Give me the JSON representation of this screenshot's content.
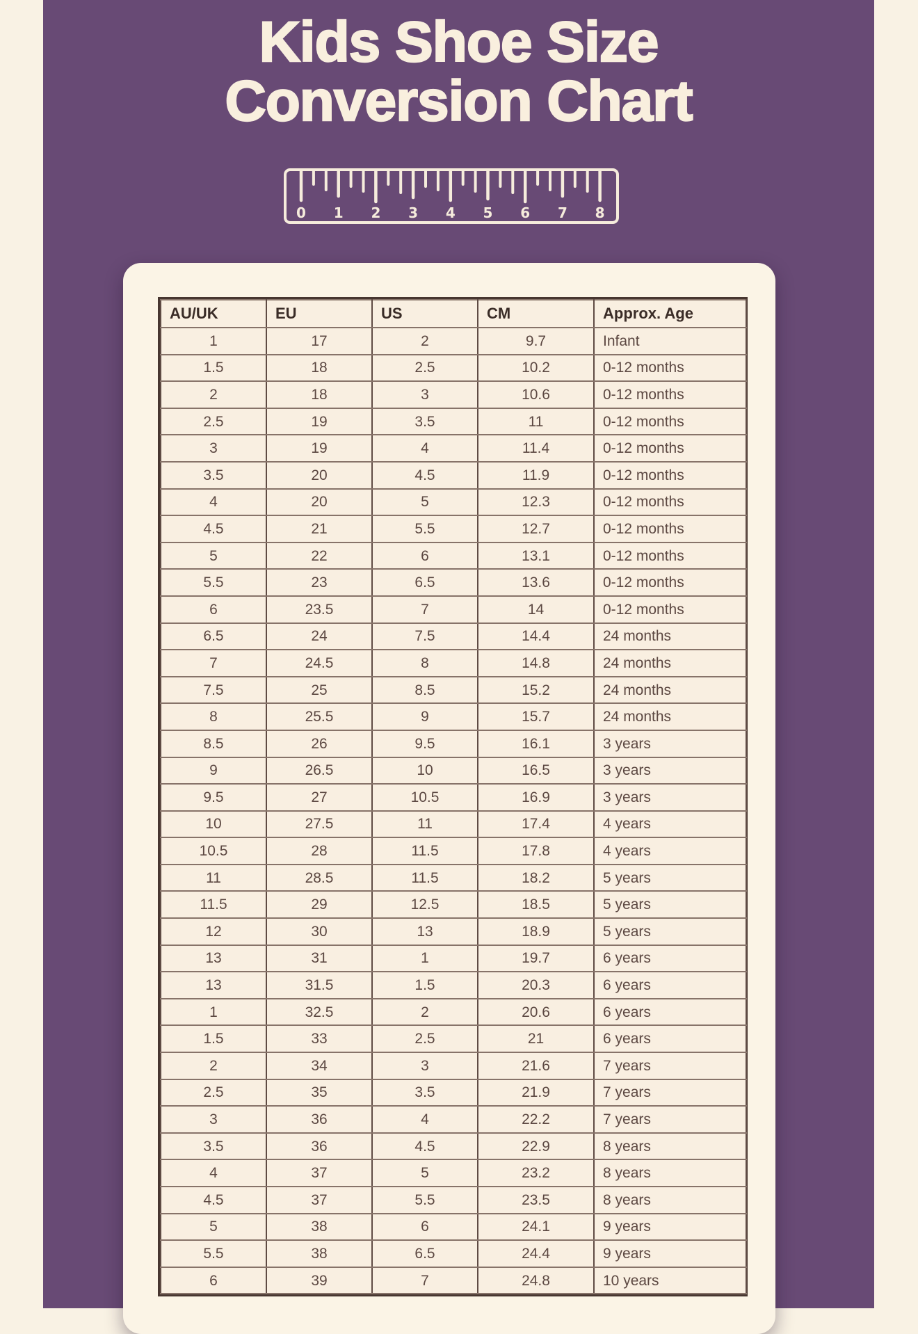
{
  "page": {
    "title_line1": "Kids Shoe Size",
    "title_line2": "Conversion Chart"
  },
  "ruler": {
    "numbers": [
      "0",
      "1",
      "2",
      "3",
      "4",
      "5",
      "6",
      "7",
      "8"
    ]
  },
  "colors": {
    "page_background": "#f9f2e4",
    "panel_purple": "#684a75",
    "title_cream": "#f9efde",
    "card_cream": "#fbf4e6",
    "cell_cream": "#f9efe1",
    "table_outer_border": "#473630",
    "table_vertical_border": "#5f4b44",
    "table_horizontal_border": "#877369",
    "header_text": "#3a2c27",
    "cell_text": "#5c4842",
    "ruler_stroke": "#f6ecdc"
  },
  "table": {
    "headers": [
      "AU/UK",
      "EU",
      "US",
      "CM",
      "Approx. Age"
    ],
    "rows": [
      [
        "1",
        "17",
        "2",
        "9.7",
        "Infant"
      ],
      [
        "1.5",
        "18",
        "2.5",
        "10.2",
        "0-12 months"
      ],
      [
        "2",
        "18",
        "3",
        "10.6",
        "0-12 months"
      ],
      [
        "2.5",
        "19",
        "3.5",
        "11",
        "0-12 months"
      ],
      [
        "3",
        "19",
        "4",
        "11.4",
        "0-12 months"
      ],
      [
        "3.5",
        "20",
        "4.5",
        "11.9",
        "0-12 months"
      ],
      [
        "4",
        "20",
        "5",
        "12.3",
        "0-12 months"
      ],
      [
        "4.5",
        "21",
        "5.5",
        "12.7",
        "0-12 months"
      ],
      [
        "5",
        "22",
        "6",
        "13.1",
        "0-12 months"
      ],
      [
        "5.5",
        "23",
        "6.5",
        "13.6",
        "0-12 months"
      ],
      [
        "6",
        "23.5",
        "7",
        "14",
        "0-12 months"
      ],
      [
        "6.5",
        "24",
        "7.5",
        "14.4",
        "24 months"
      ],
      [
        "7",
        "24.5",
        "8",
        "14.8",
        "24 months"
      ],
      [
        "7.5",
        "25",
        "8.5",
        "15.2",
        "24 months"
      ],
      [
        "8",
        "25.5",
        "9",
        "15.7",
        "24 months"
      ],
      [
        "8.5",
        "26",
        "9.5",
        "16.1",
        "3 years"
      ],
      [
        "9",
        "26.5",
        "10",
        "16.5",
        "3 years"
      ],
      [
        "9.5",
        "27",
        "10.5",
        "16.9",
        "3 years"
      ],
      [
        "10",
        "27.5",
        "11",
        "17.4",
        "4 years"
      ],
      [
        "10.5",
        "28",
        "11.5",
        "17.8",
        "4 years"
      ],
      [
        "11",
        "28.5",
        "11.5",
        "18.2",
        "5 years"
      ],
      [
        "11.5",
        "29",
        "12.5",
        "18.5",
        "5 years"
      ],
      [
        "12",
        "30",
        "13",
        "18.9",
        "5 years"
      ],
      [
        "13",
        "31",
        "1",
        "19.7",
        "6 years"
      ],
      [
        "13",
        "31.5",
        "1.5",
        "20.3",
        "6 years"
      ],
      [
        "1",
        "32.5",
        "2",
        "20.6",
        "6 years"
      ],
      [
        "1.5",
        "33",
        "2.5",
        "21",
        "6 years"
      ],
      [
        "2",
        "34",
        "3",
        "21.6",
        "7 years"
      ],
      [
        "2.5",
        "35",
        "3.5",
        "21.9",
        "7 years"
      ],
      [
        "3",
        "36",
        "4",
        "22.2",
        "7 years"
      ],
      [
        "3.5",
        "36",
        "4.5",
        "22.9",
        "8 years"
      ],
      [
        "4",
        "37",
        "5",
        "23.2",
        "8 years"
      ],
      [
        "4.5",
        "37",
        "5.5",
        "23.5",
        "8 years"
      ],
      [
        "5",
        "38",
        "6",
        "24.1",
        "9 years"
      ],
      [
        "5.5",
        "38",
        "6.5",
        "24.4",
        "9 years"
      ],
      [
        "6",
        "39",
        "7",
        "24.8",
        "10 years"
      ]
    ]
  }
}
